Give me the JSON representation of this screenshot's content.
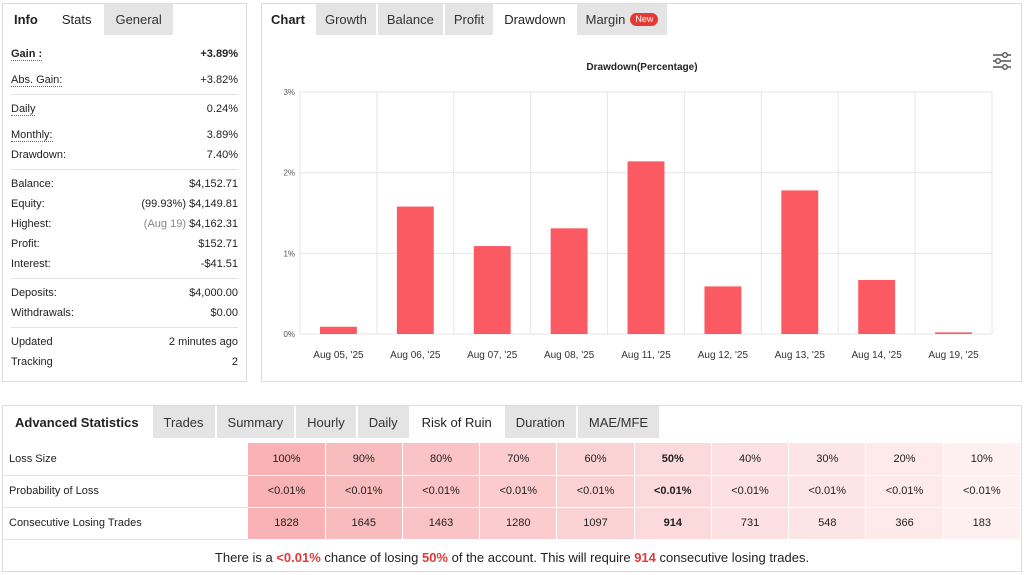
{
  "left_panel": {
    "tabs": [
      "Info",
      "Stats",
      "General"
    ],
    "rows": [
      {
        "label": "Gain :",
        "value": "+3.89%"
      },
      {
        "label": "Abs. Gain:",
        "value": "+3.82%"
      },
      {
        "label": "Daily",
        "value": "0.24%"
      },
      {
        "label": "Monthly:",
        "value": "3.89%"
      },
      {
        "label": "Drawdown:",
        "value": "7.40%"
      },
      {
        "label": "Balance:",
        "value": "$4,152.71"
      },
      {
        "label": "Equity:",
        "pre": "(99.93%)",
        "value": "$4,149.81"
      },
      {
        "label": "Highest:",
        "pre": "(Aug 19)",
        "value": "$4,162.31"
      },
      {
        "label": "Profit:",
        "value": "$152.71"
      },
      {
        "label": "Interest:",
        "value": "-$41.51"
      },
      {
        "label": "Deposits:",
        "value": "$4,000.00"
      },
      {
        "label": "Withdrawals:",
        "value": "$0.00"
      },
      {
        "label": "Updated",
        "value": "2 minutes ago"
      },
      {
        "label": "Tracking",
        "value": "2"
      }
    ]
  },
  "chart_panel": {
    "tabs": [
      "Chart",
      "Growth",
      "Balance",
      "Profit",
      "Drawdown",
      "Margin"
    ],
    "new_badge": "New",
    "settings_icon": "sliders-icon"
  },
  "chart_data": {
    "type": "bar",
    "title": "Drawdown(Percentage)",
    "categories": [
      "Aug 05, '25",
      "Aug 06, '25",
      "Aug 07, '25",
      "Aug 08, '25",
      "Aug 11, '25",
      "Aug 12, '25",
      "Aug 13, '25",
      "Aug 14, '25",
      "Aug 19, '25"
    ],
    "values": [
      0.09,
      1.58,
      1.09,
      1.31,
      2.14,
      0.59,
      1.78,
      0.67,
      0.02
    ],
    "ylim": [
      0,
      3
    ],
    "yticks": [
      0,
      1,
      2,
      3
    ],
    "ytick_labels": [
      "0%",
      "1%",
      "2%",
      "3%"
    ],
    "bar_color": "#fb5a63",
    "grid": true
  },
  "advanced": {
    "title": "Advanced Statistics",
    "tabs": [
      "Trades",
      "Summary",
      "Hourly",
      "Daily",
      "Risk of Ruin",
      "Duration",
      "MAE/MFE"
    ],
    "row_labels": [
      "Loss Size",
      "Probability of Loss",
      "Consecutive Losing Trades"
    ],
    "loss_size": [
      "100%",
      "90%",
      "80%",
      "70%",
      "60%",
      "50%",
      "40%",
      "30%",
      "20%",
      "10%"
    ],
    "probability": [
      "<0.01%",
      "<0.01%",
      "<0.01%",
      "<0.01%",
      "<0.01%",
      "<0.01%",
      "<0.01%",
      "<0.01%",
      "<0.01%",
      "<0.01%"
    ],
    "consecutive": [
      "1828",
      "1645",
      "1463",
      "1280",
      "1097",
      "914",
      "731",
      "548",
      "366",
      "183"
    ],
    "column_colors": [
      "#f9b3b6",
      "#f9bcbe",
      "#fac3c5",
      "#fbcbcd",
      "#fbd2d4",
      "#fcd9da",
      "#fde0e1",
      "#fde5e6",
      "#feeaeb",
      "#fef0f0"
    ],
    "summary": {
      "part1": "There is a ",
      "chance": "<0.01%",
      "part2": " chance of losing ",
      "pct": "50%",
      "part3": " of the account. This will require ",
      "trades": "914",
      "part4": " consecutive losing trades."
    }
  }
}
